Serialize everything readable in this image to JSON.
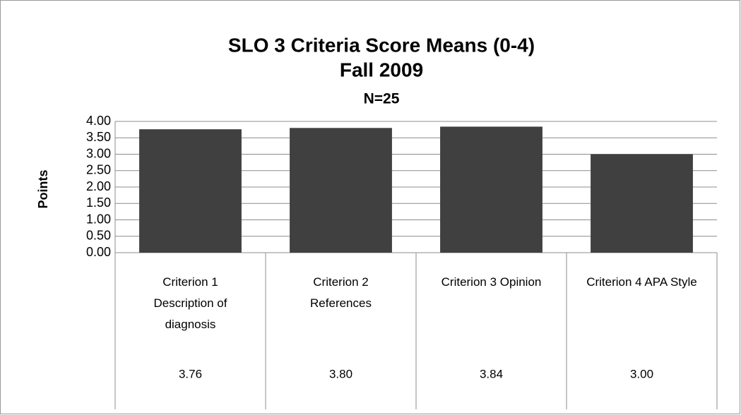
{
  "chart_data": {
    "type": "bar",
    "title": "SLO 3 Criteria Score Means (0-4)",
    "subtitle": "Fall 2009",
    "annotation": "N=25",
    "y_label": "Points",
    "categories": [
      "Criterion 1 Description of diagnosis",
      "Criterion 2 References",
      "Criterion 3 Opinion",
      "Criterion 4 APA Style"
    ],
    "values": [
      3.76,
      3.8,
      3.84,
      3.0
    ],
    "value_labels": [
      "3.76",
      "3.80",
      "3.84",
      "3.00"
    ],
    "color": "#404040",
    "ylim": [
      0,
      4
    ],
    "yticks": [
      {
        "value": 0,
        "label": "0.00"
      },
      {
        "value": 0.5,
        "label": "0.50"
      },
      {
        "value": 1,
        "label": "1.00"
      },
      {
        "value": 1.5,
        "label": "1.50"
      },
      {
        "value": 2,
        "label": "2.00"
      },
      {
        "value": 2.5,
        "label": "2.50"
      },
      {
        "value": 3,
        "label": "3.00"
      },
      {
        "value": 3.5,
        "label": "3.50"
      },
      {
        "value": 4,
        "label": "4.00"
      }
    ],
    "grid": true
  }
}
